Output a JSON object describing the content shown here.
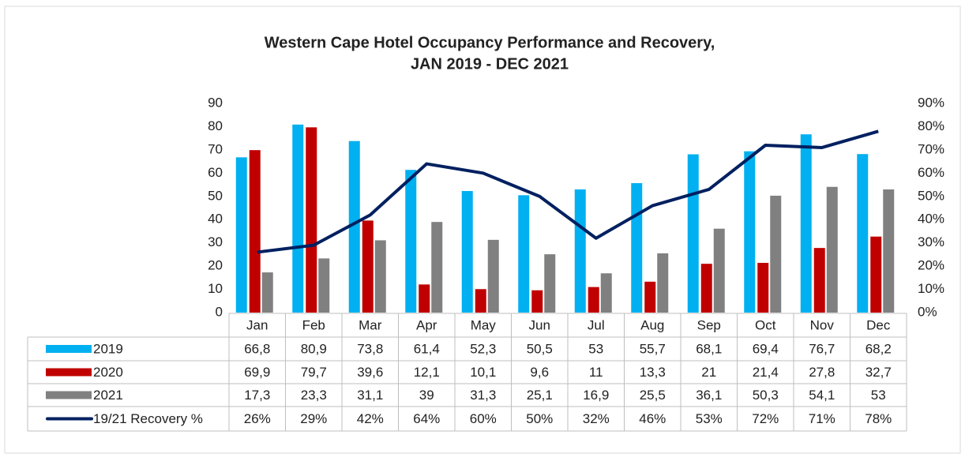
{
  "chart_data": {
    "type": "bar",
    "title": [
      "Western Cape Hotel Occupancy Performance and Recovery,",
      "JAN 2019 - DEC 2021"
    ],
    "categories": [
      "Jan",
      "Feb",
      "Mar",
      "Apr",
      "May",
      "Jun",
      "Jul",
      "Aug",
      "Sep",
      "Oct",
      "Nov",
      "Dec"
    ],
    "series": [
      {
        "name": "2019",
        "type": "bar",
        "color": "#00b0f0",
        "values": [
          66.8,
          80.9,
          73.8,
          61.4,
          52.3,
          50.5,
          53,
          55.7,
          68.1,
          69.4,
          76.7,
          68.2
        ],
        "value_labels": [
          "66,8",
          "80,9",
          "73,8",
          "61,4",
          "52,3",
          "50,5",
          "53",
          "55,7",
          "68,1",
          "69,4",
          "76,7",
          "68,2"
        ]
      },
      {
        "name": "2020",
        "type": "bar",
        "color": "#c00000",
        "values": [
          69.9,
          79.7,
          39.6,
          12.1,
          10.1,
          9.6,
          11,
          13.3,
          21,
          21.4,
          27.8,
          32.7
        ],
        "value_labels": [
          "69,9",
          "79,7",
          "39,6",
          "12,1",
          "10,1",
          "9,6",
          "11",
          "13,3",
          "21",
          "21,4",
          "27,8",
          "32,7"
        ]
      },
      {
        "name": "2021",
        "type": "bar",
        "color": "#808080",
        "values": [
          17.3,
          23.3,
          31.1,
          39,
          31.3,
          25.1,
          16.9,
          25.5,
          36.1,
          50.3,
          54.1,
          53
        ],
        "value_labels": [
          "17,3",
          "23,3",
          "31,1",
          "39",
          "31,3",
          "25,1",
          "16,9",
          "25,5",
          "36,1",
          "50,3",
          "54,1",
          "53"
        ]
      },
      {
        "name": "19/21 Recovery %",
        "type": "line",
        "axis": "y2",
        "color": "#002060",
        "values": [
          26,
          29,
          42,
          64,
          60,
          50,
          32,
          46,
          53,
          72,
          71,
          78
        ],
        "value_labels": [
          "26%",
          "29%",
          "42%",
          "64%",
          "60%",
          "50%",
          "32%",
          "46%",
          "53%",
          "72%",
          "71%",
          "78%"
        ]
      }
    ],
    "ylim": [
      0,
      90
    ],
    "yticks": [
      0,
      10,
      20,
      30,
      40,
      50,
      60,
      70,
      80,
      90
    ],
    "y2lim": [
      0,
      90
    ],
    "y2ticks": [
      {
        "value": 0,
        "label": "0%"
      },
      {
        "value": 10,
        "label": "10%"
      },
      {
        "value": 20,
        "label": "20%"
      },
      {
        "value": 30,
        "label": "30%"
      },
      {
        "value": 40,
        "label": "40%"
      },
      {
        "value": 50,
        "label": "50%"
      },
      {
        "value": 60,
        "label": "60%"
      },
      {
        "value": 70,
        "label": "70%"
      },
      {
        "value": 80,
        "label": "80%"
      },
      {
        "value": 90,
        "label": "90%"
      }
    ]
  }
}
